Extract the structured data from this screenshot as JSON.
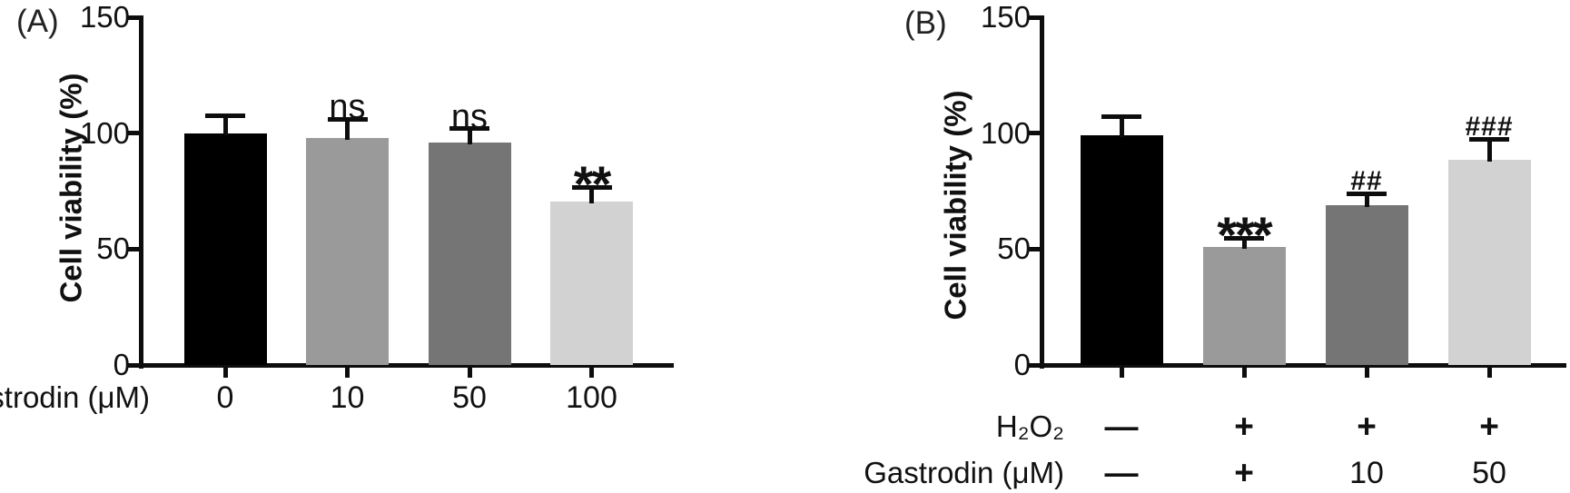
{
  "chart_data": [
    {
      "type": "bar",
      "panel_tag": "(A)",
      "title": "",
      "ylabel": "Cell viability (%)",
      "ylim": [
        0,
        150
      ],
      "ytick_values": [
        0,
        50,
        100,
        150
      ],
      "ytick_labels": [
        "0",
        "50",
        "100",
        "150"
      ],
      "xlabel": "Gastrodin (μM)",
      "categories": [
        "0",
        "10",
        "50",
        "100"
      ],
      "x_rows": [
        {
          "label": "Gastrodin (μM)",
          "values": [
            "0",
            "10",
            "50",
            "100"
          ]
        }
      ],
      "values": [
        100,
        98,
        96,
        70.5
      ],
      "errors": [
        7.5,
        8,
        6,
        6
      ],
      "annotations": [
        "",
        "ns",
        "ns",
        "**"
      ],
      "bar_colors": [
        "#000000",
        "#9a9a9a",
        "#757575",
        "#d2d2d2"
      ],
      "grid": false,
      "legend": "none"
    },
    {
      "type": "bar",
      "panel_tag": "(B)",
      "title": "",
      "ylabel": "Cell viability (%)",
      "ylim": [
        0,
        150
      ],
      "ytick_values": [
        0,
        50,
        100,
        150
      ],
      "ytick_labels": [
        "0",
        "50",
        "100",
        "150"
      ],
      "x_rows": [
        {
          "label": "H₂O₂",
          "values": [
            "—",
            "+",
            "+",
            "+"
          ]
        },
        {
          "label": "Gastrodin (μM)",
          "values": [
            "—",
            "+",
            "10",
            "50"
          ]
        }
      ],
      "values": [
        99,
        51,
        69,
        88.5
      ],
      "errors": [
        8,
        3.5,
        5,
        9
      ],
      "annotations": [
        "",
        "***",
        "##",
        "###"
      ],
      "bar_colors": [
        "#000000",
        "#9a9a9a",
        "#757575",
        "#d2d2d2"
      ],
      "grid": false,
      "legend": "none"
    }
  ],
  "style": {
    "axis_color": "#0d0d0d",
    "text_color": "#111111",
    "background": "#ffffff"
  }
}
